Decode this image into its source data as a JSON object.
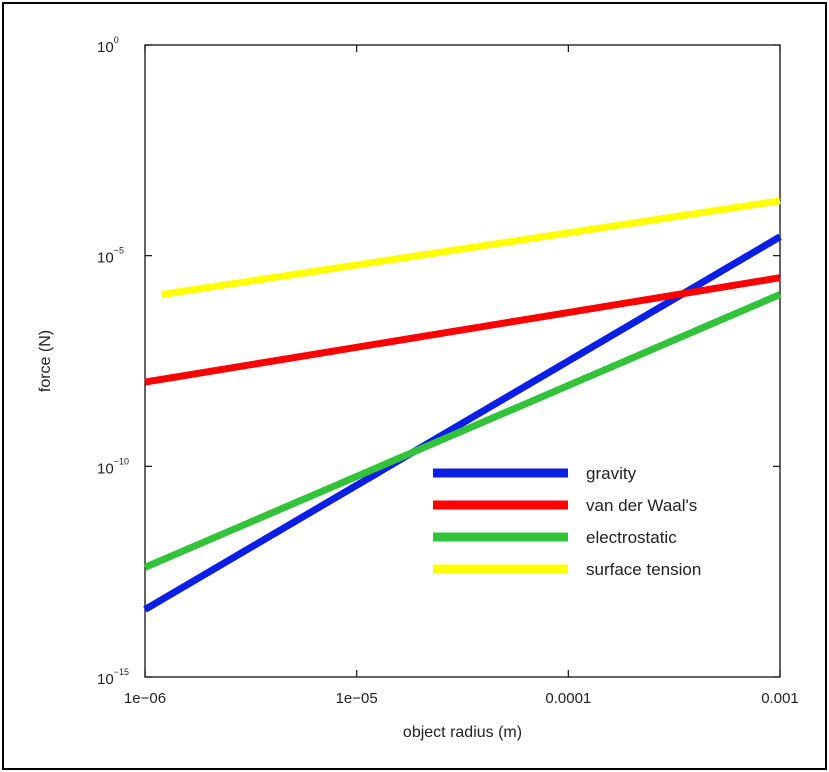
{
  "chart_data": {
    "type": "line",
    "title": "",
    "xlabel": "object radius (m)",
    "ylabel": "force (N)",
    "x_scale": "log",
    "y_scale": "log",
    "xlim": [
      1e-06,
      0.001
    ],
    "ylim": [
      1e-15,
      1
    ],
    "x_ticks": [
      {
        "value": 1e-06,
        "label": "1e−06"
      },
      {
        "value": 1e-05,
        "label": "1e−05"
      },
      {
        "value": 0.0001,
        "label": "0.0001"
      },
      {
        "value": 0.001,
        "label": "0.001"
      }
    ],
    "y_ticks": [
      {
        "value": 1,
        "base": "10",
        "exp": "0"
      },
      {
        "value": 1e-05,
        "base": "10",
        "exp": "−5"
      },
      {
        "value": 1e-10,
        "base": "10",
        "exp": "−10"
      },
      {
        "value": 1e-15,
        "base": "10",
        "exp": "−15"
      }
    ],
    "grid": false,
    "legend_position": "center-right",
    "series": [
      {
        "name": "gravity",
        "color": "#0a1ee6",
        "points": [
          [
            1e-06,
            4e-14
          ],
          [
            0.001,
            2.8e-05
          ]
        ]
      },
      {
        "name": "van der Waal's",
        "color": "#ff0000",
        "points": [
          [
            1e-06,
            1e-08
          ],
          [
            0.001,
            3e-06
          ]
        ]
      },
      {
        "name": "electrostatic",
        "color": "#33c33a",
        "points": [
          [
            1e-06,
            4e-13
          ],
          [
            0.001,
            1.2e-06
          ]
        ]
      },
      {
        "name": "surface tension",
        "color": "#ffff00",
        "points": [
          [
            1.2e-06,
            1.2e-06
          ],
          [
            0.001,
            0.0002
          ]
        ]
      }
    ]
  }
}
